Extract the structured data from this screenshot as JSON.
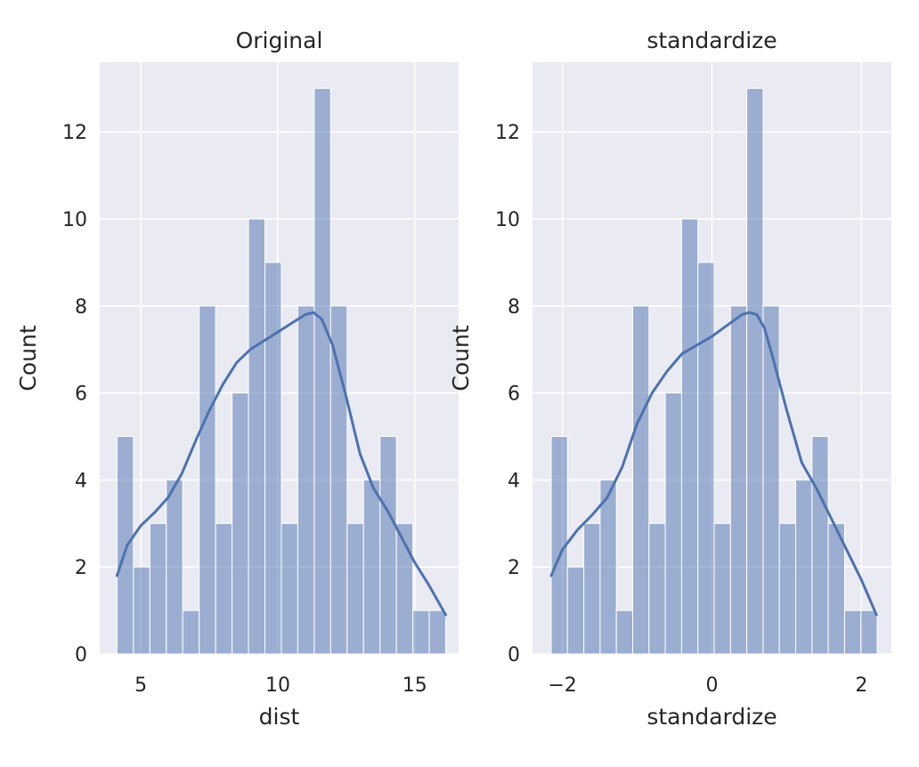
{
  "chart_data": [
    {
      "type": "bar",
      "title": "Original",
      "xlabel": "dist",
      "ylabel": "Count",
      "xlim": [
        3.5,
        16.6
      ],
      "ylim": [
        0,
        13.6
      ],
      "xticks": [
        5,
        10,
        15
      ],
      "xtick_labels": [
        "5",
        "10",
        "15"
      ],
      "yticks": [
        0,
        2,
        4,
        6,
        8,
        10,
        12
      ],
      "ytick_labels": [
        "0",
        "2",
        "4",
        "6",
        "8",
        "10",
        "12"
      ],
      "grid": true,
      "color": "#4c72b0",
      "bins": {
        "start": 4.13,
        "width": 0.6,
        "counts": [
          5,
          2,
          3,
          4,
          1,
          8,
          3,
          6,
          10,
          9,
          3,
          8,
          13,
          8,
          3,
          4,
          5,
          3,
          1,
          1
        ]
      },
      "kde": {
        "x": [
          4.13,
          4.5,
          5.0,
          5.5,
          6.0,
          6.5,
          7.0,
          7.5,
          8.0,
          8.5,
          9.0,
          9.5,
          10.0,
          10.5,
          11.0,
          11.3,
          11.6,
          12.0,
          12.5,
          13.0,
          13.5,
          14.0,
          14.5,
          15.0,
          15.5,
          16.13
        ],
        "y": [
          1.8,
          2.5,
          2.95,
          3.25,
          3.6,
          4.15,
          4.9,
          5.6,
          6.2,
          6.7,
          7.0,
          7.2,
          7.4,
          7.6,
          7.8,
          7.85,
          7.7,
          7.1,
          5.9,
          4.6,
          3.8,
          3.3,
          2.7,
          2.1,
          1.6,
          0.9
        ]
      }
    },
    {
      "type": "bar",
      "title": "standardize",
      "xlabel": "standardize",
      "ylabel": "Count",
      "xlim": [
        -2.4,
        2.4
      ],
      "ylim": [
        0,
        13.6
      ],
      "xticks": [
        -2,
        0,
        2
      ],
      "xtick_labels": [
        "−2",
        "0",
        "2"
      ],
      "yticks": [
        0,
        2,
        4,
        6,
        8,
        10,
        12
      ],
      "ytick_labels": [
        "0",
        "2",
        "4",
        "6",
        "8",
        "10",
        "12"
      ],
      "grid": true,
      "color": "#4c72b0",
      "bins": {
        "start": -2.15,
        "width": 0.218,
        "counts": [
          5,
          2,
          3,
          4,
          1,
          8,
          3,
          6,
          10,
          9,
          3,
          8,
          13,
          8,
          3,
          4,
          5,
          3,
          1,
          1
        ]
      },
      "kde": {
        "x": [
          -2.15,
          -2.0,
          -1.8,
          -1.6,
          -1.4,
          -1.2,
          -1.0,
          -0.8,
          -0.6,
          -0.4,
          -0.2,
          0.0,
          0.2,
          0.4,
          0.5,
          0.6,
          0.7,
          0.8,
          1.0,
          1.2,
          1.4,
          1.6,
          1.8,
          2.0,
          2.2
        ],
        "y": [
          1.8,
          2.4,
          2.85,
          3.2,
          3.6,
          4.3,
          5.3,
          6.0,
          6.5,
          6.9,
          7.1,
          7.3,
          7.55,
          7.8,
          7.85,
          7.8,
          7.5,
          6.9,
          5.6,
          4.4,
          3.8,
          3.1,
          2.4,
          1.7,
          0.9
        ]
      }
    }
  ]
}
